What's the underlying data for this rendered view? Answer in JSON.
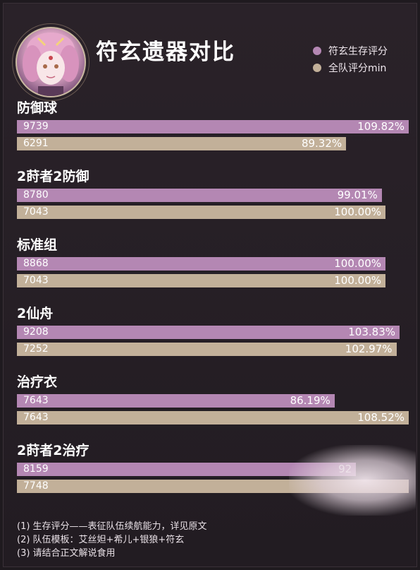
{
  "header": {
    "title": "符玄遗器对比"
  },
  "legend": [
    {
      "label": "符玄生存评分",
      "color": "#b487b3"
    },
    {
      "label": "全队评分min",
      "color": "#c2b099"
    }
  ],
  "chart_data": {
    "type": "bar",
    "orientation": "horizontal",
    "title": "符玄遗器对比",
    "categories": [
      "防御球",
      "2莳者2防御",
      "标准组",
      "2仙舟",
      "治疗衣",
      "2莳者2治疗"
    ],
    "series": [
      {
        "name": "符玄生存评分",
        "values": [
          9739,
          8780,
          8868,
          9208,
          7643,
          8159
        ],
        "percent_labels": [
          "109.82%",
          "99.01%",
          "100.00%",
          "103.83%",
          "86.19%",
          "92"
        ],
        "color": "#b487b3"
      },
      {
        "name": "全队评分min",
        "values": [
          6291,
          7043,
          7043,
          7252,
          7643,
          7748
        ],
        "percent_labels": [
          "89.32%",
          "100.00%",
          "100.00%",
          "102.97%",
          "108.52%",
          ""
        ],
        "color": "#c2b099"
      }
    ]
  },
  "notes": [
    "(1) 生存评分——表征队伍续航能力，详见原文",
    "(2) 队伍模板：艾丝妲+希儿+银狼+符玄",
    "(3) 请结合正文解说食用"
  ]
}
